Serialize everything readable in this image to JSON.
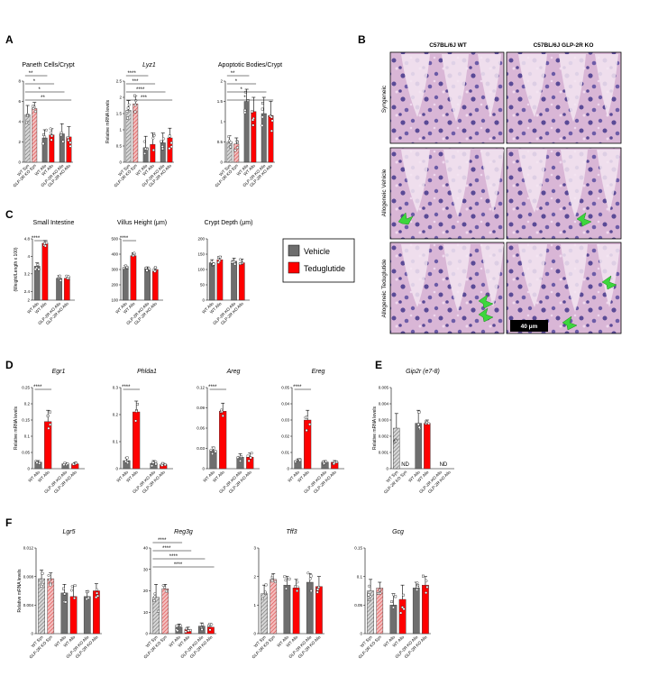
{
  "colors": {
    "vehicle": "#6e6e6e",
    "teduglutide": "#ff0000",
    "hatch_vehicle": "#7a7a7a",
    "hatch_ted": "#e05050",
    "arrow": "#3dd63d"
  },
  "panel_letters": [
    "A",
    "B",
    "C",
    "D",
    "E",
    "F"
  ],
  "legend": {
    "items": [
      {
        "label": "Vehicle",
        "color": "#6e6e6e"
      },
      {
        "label": "Teduglutide",
        "color": "#ff0000"
      }
    ]
  },
  "histology": {
    "columns": [
      "C57BL/6J WT",
      "C57BL/6J GLP-2R KO"
    ],
    "rows": [
      "Syngeneic",
      "Allogeneic Vehicle",
      "Allogeneic Teduglutide"
    ],
    "scale_bar": "40 μm"
  },
  "labels6": [
    "WT Syn",
    "GLP-2R KO Syn",
    "WT Allo",
    "WT Allo",
    "GLP-2R KO Allo",
    "GLP-2R KO Allo"
  ],
  "labels4": [
    "WT Allo",
    "WT Allo",
    "GLP-2R KO Allo",
    "GLP-2R KO Allo"
  ],
  "chart_data": [
    {
      "id": "paneth",
      "type": "bar",
      "title": "Paneth Cells/Crypt",
      "italic": false,
      "ylabel": "",
      "ylim": [
        0,
        8
      ],
      "yticks": [
        0,
        2,
        4,
        6,
        8
      ],
      "categories": [
        "WT Syn",
        "GLP-2R KO Syn",
        "WT Allo",
        "WT Allo",
        "GLP-2R KO Allo",
        "GLP-2R KO Allo"
      ],
      "values": [
        4.7,
        5.3,
        2.4,
        2.7,
        2.8,
        2.5
      ],
      "errors": [
        0.9,
        0.6,
        0.8,
        0.6,
        1.0,
        1.0
      ],
      "sig": [
        {
          "label": "**",
          "a": 0,
          "b": 2
        },
        {
          "label": "*",
          "a": 0,
          "b": 3
        },
        {
          "label": "*",
          "a": 0,
          "b": 4
        },
        {
          "label": "**",
          "a": 0,
          "b": 5
        }
      ]
    },
    {
      "id": "lyz1",
      "type": "bar",
      "title": "Lyz1",
      "italic": true,
      "ylabel": "Relative mRNA levels",
      "ylim": [
        0,
        2.5
      ],
      "yticks": [
        0,
        0.5,
        1.0,
        1.5,
        2.0,
        2.5
      ],
      "categories": [
        "WT Syn",
        "GLP-2R KO Syn",
        "WT Allo",
        "WT Allo",
        "GLP-2R KO Allo",
        "GLP-2R KO Allo"
      ],
      "values": [
        1.6,
        1.8,
        0.45,
        0.55,
        0.6,
        0.75
      ],
      "errors": [
        0.3,
        0.25,
        0.35,
        0.35,
        0.3,
        0.3
      ],
      "sig": [
        {
          "label": "****",
          "a": 0,
          "b": 2
        },
        {
          "label": "***",
          "a": 0,
          "b": 3
        },
        {
          "label": "****",
          "a": 0,
          "b": 4
        },
        {
          "label": "***",
          "a": 0,
          "b": 5
        }
      ]
    },
    {
      "id": "apoptotic",
      "type": "bar",
      "title": "Apoptotic Bodies/Crypt",
      "italic": false,
      "ylabel": "",
      "ylim": [
        0,
        2.0
      ],
      "yticks": [
        0,
        0.5,
        1.0,
        1.5,
        2.0
      ],
      "categories": [
        "WT Syn",
        "GLP-2R KO Syn",
        "WT Allo",
        "WT Allo",
        "GLP-2R KO Allo",
        "GLP-2R KO Allo"
      ],
      "values": [
        0.5,
        0.45,
        1.5,
        1.25,
        1.2,
        1.15
      ],
      "errors": [
        0.15,
        0.15,
        0.3,
        0.35,
        0.4,
        0.35
      ],
      "sig": [
        {
          "label": "**",
          "a": 0,
          "b": 2
        },
        {
          "label": "*",
          "a": 0,
          "b": 3
        },
        {
          "label": "*",
          "a": 0,
          "b": 4
        },
        {
          "label": "*",
          "a": 0,
          "b": 5
        }
      ]
    },
    {
      "id": "small_intestine",
      "type": "bar",
      "title": "Small Intestine",
      "italic": false,
      "ylabel": "(Weight/Length x 100)",
      "ylim": [
        2.0,
        4.8
      ],
      "yticks": [
        2.0,
        2.4,
        3.2,
        4.0,
        4.8
      ],
      "categories": [
        "WT Allo",
        "WT Allo",
        "GLP-2R KO Allo",
        "GLP-2R KO Allo"
      ],
      "values": [
        3.55,
        4.6,
        3.0,
        3.0
      ],
      "errors": [
        0.15,
        0.12,
        0.12,
        0.12
      ],
      "sig": [
        {
          "label": "****",
          "a": 0,
          "b": 1
        }
      ]
    },
    {
      "id": "villus",
      "type": "bar",
      "title": "Villus Height (μm)",
      "italic": false,
      "ylabel": "",
      "ylim": [
        100,
        500
      ],
      "yticks": [
        100,
        200,
        300,
        400,
        500
      ],
      "categories": [
        "WT Allo",
        "WT Allo",
        "GLP-2R KO Allo",
        "GLP-2R KO Allo"
      ],
      "values": [
        310,
        390,
        305,
        300
      ],
      "errors": [
        15,
        20,
        12,
        12
      ],
      "sig": [
        {
          "label": "****",
          "a": 0,
          "b": 1
        }
      ]
    },
    {
      "id": "crypt",
      "type": "bar",
      "title": "Crypt Depth (μm)",
      "italic": false,
      "ylabel": "",
      "ylim": [
        0,
        200
      ],
      "yticks": [
        0,
        50,
        100,
        150,
        200
      ],
      "categories": [
        "WT Allo",
        "WT Allo",
        "GLP-2R KO Allo",
        "GLP-2R KO Allo"
      ],
      "values": [
        122,
        132,
        127,
        122
      ],
      "errors": [
        10,
        10,
        10,
        12
      ],
      "sig": []
    },
    {
      "id": "egr1",
      "type": "bar",
      "title": "Egr1",
      "italic": true,
      "ylabel": "Relative mRNA levels",
      "ylim": [
        0,
        0.25
      ],
      "yticks": [
        0,
        0.05,
        0.1,
        0.15,
        0.2,
        0.25
      ],
      "categories": [
        "WT Allo",
        "WT Allo",
        "GLP-2R KO Allo",
        "GLP-2R KO Allo"
      ],
      "values": [
        0.02,
        0.145,
        0.015,
        0.015
      ],
      "errors": [
        0.005,
        0.035,
        0.003,
        0.003
      ],
      "sig": [
        {
          "label": "****",
          "a": 0,
          "b": 1
        }
      ]
    },
    {
      "id": "phlda1",
      "type": "bar",
      "title": "Phlda1",
      "italic": true,
      "ylabel": "",
      "ylim": [
        0,
        0.3
      ],
      "yticks": [
        0,
        0.1,
        0.2,
        0.3
      ],
      "categories": [
        "WT Allo",
        "WT Allo",
        "GLP-2R KO Allo",
        "GLP-2R KO Allo"
      ],
      "values": [
        0.03,
        0.21,
        0.02,
        0.015
      ],
      "errors": [
        0.01,
        0.04,
        0.01,
        0.005
      ],
      "sig": [
        {
          "label": "****",
          "a": 0,
          "b": 1
        }
      ]
    },
    {
      "id": "areg",
      "type": "bar",
      "title": "Areg",
      "italic": true,
      "ylabel": "",
      "ylim": [
        0,
        0.12
      ],
      "yticks": [
        0,
        0.03,
        0.06,
        0.09,
        0.12
      ],
      "categories": [
        "WT Allo",
        "WT Allo",
        "GLP-2R KO Allo",
        "GLP-2R KO Allo"
      ],
      "values": [
        0.027,
        0.085,
        0.017,
        0.017
      ],
      "errors": [
        0.005,
        0.012,
        0.005,
        0.006
      ],
      "sig": [
        {
          "label": "****",
          "a": 0,
          "b": 1
        }
      ]
    },
    {
      "id": "ereg",
      "type": "bar",
      "title": "Ereg",
      "italic": true,
      "ylabel": "",
      "ylim": [
        0,
        0.05
      ],
      "yticks": [
        0,
        0.01,
        0.02,
        0.03,
        0.04,
        0.05
      ],
      "categories": [
        "WT Allo",
        "WT Allo",
        "GLP-2R KO Allo",
        "GLP-2R KO Allo"
      ],
      "values": [
        0.005,
        0.03,
        0.004,
        0.004
      ],
      "errors": [
        0.001,
        0.006,
        0.001,
        0.001
      ],
      "sig": [
        {
          "label": "****",
          "a": 0,
          "b": 1
        }
      ]
    },
    {
      "id": "gip2r",
      "type": "bar",
      "title": "Gip2r (e7-8)",
      "italic": true,
      "ylabel": "Relative mRNA levels",
      "ylim": [
        0,
        0.005
      ],
      "yticks": [
        0,
        0.001,
        0.002,
        0.003,
        0.004,
        0.005
      ],
      "categories": [
        "WT Syn",
        "GLP-2R KO Syn",
        "WT Allo",
        "WT Allo",
        "GLP-2R KO Allo",
        "GLP-2R KO Allo"
      ],
      "values": [
        0.0025,
        null,
        0.0028,
        0.0028,
        null,
        null
      ],
      "errors": [
        0.0009,
        null,
        0.0008,
        0.0002,
        null,
        null
      ],
      "nd": [
        "ND",
        "ND"
      ],
      "sig": []
    },
    {
      "id": "lgr5",
      "type": "bar",
      "title": "Lgr5",
      "italic": true,
      "ylabel": "Relative mRNA levels",
      "ylim": [
        0,
        0.012
      ],
      "yticks": [
        0,
        0.004,
        0.008,
        0.012
      ],
      "categories": [
        "WT Syn",
        "GLP-2R KO Syn",
        "WT Allo",
        "WT Allo",
        "GLP-2R KO Allo",
        "GLP-2R KO Allo"
      ],
      "values": [
        0.0077,
        0.0077,
        0.0057,
        0.0052,
        0.0052,
        0.006
      ],
      "errors": [
        0.0012,
        0.0008,
        0.0012,
        0.0015,
        0.0008,
        0.001
      ],
      "sig": []
    },
    {
      "id": "reg3g",
      "type": "bar",
      "title": "Reg3g",
      "italic": true,
      "ylabel": "",
      "ylim": [
        0,
        40
      ],
      "yticks": [
        0,
        10,
        20,
        30,
        40
      ],
      "categories": [
        "WT Syn",
        "GLP-2R KO Syn",
        "WT Allo",
        "WT Allo",
        "GLP-2R KO Allo",
        "GLP-2R KO Allo"
      ],
      "values": [
        17,
        21,
        3,
        2,
        3.5,
        3
      ],
      "errors": [
        6,
        2,
        1.5,
        1,
        1.5,
        1.5
      ],
      "sig": [
        {
          "label": "****",
          "a": 0,
          "b": 2
        },
        {
          "label": "****",
          "a": 0,
          "b": 3
        },
        {
          "label": "****",
          "a": 0,
          "b": 4
        },
        {
          "label": "****",
          "a": 0,
          "b": 5
        }
      ]
    },
    {
      "id": "tff3",
      "type": "bar",
      "title": "Tff3",
      "italic": true,
      "ylabel": "",
      "ylim": [
        0,
        3
      ],
      "yticks": [
        0,
        1,
        2,
        3
      ],
      "categories": [
        "WT Syn",
        "GLP-2R KO Syn",
        "WT Allo",
        "WT Allo",
        "GLP-2R KO Allo",
        "GLP-2R KO Allo"
      ],
      "values": [
        1.4,
        1.9,
        1.7,
        1.6,
        1.8,
        1.65
      ],
      "errors": [
        0.3,
        0.2,
        0.3,
        0.3,
        0.3,
        0.35
      ],
      "sig": []
    },
    {
      "id": "gcg",
      "type": "bar",
      "title": "Gcg",
      "italic": true,
      "ylabel": "",
      "ylim": [
        0,
        0.15
      ],
      "yticks": [
        0,
        0.05,
        0.1,
        0.15
      ],
      "categories": [
        "WT Syn",
        "GLP-2R KO Syn",
        "WT Allo",
        "WT Allo",
        "GLP-2R KO Allo",
        "GLP-2R KO Allo"
      ],
      "values": [
        0.075,
        0.08,
        0.05,
        0.06,
        0.08,
        0.085
      ],
      "errors": [
        0.02,
        0.01,
        0.02,
        0.025,
        0.01,
        0.015
      ],
      "sig": []
    }
  ]
}
